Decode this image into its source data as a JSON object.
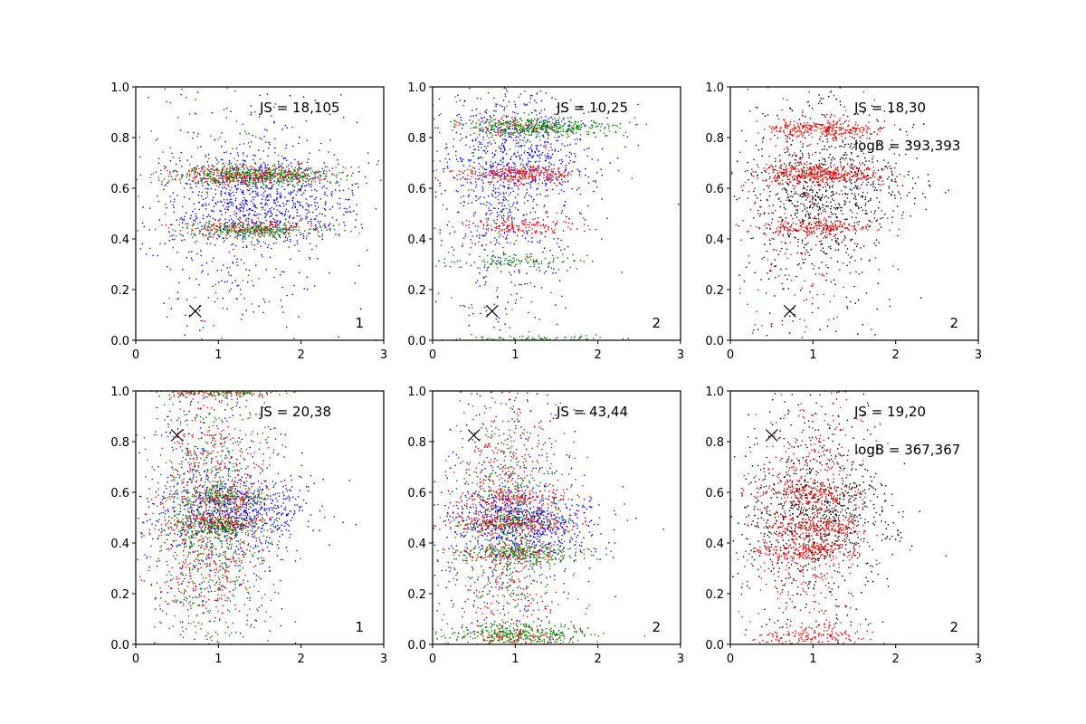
{
  "colors": {
    "blue": "#0000ff",
    "red": "#ff0000",
    "green": "#008000",
    "black": "#000000"
  },
  "chart_data": [
    {
      "type": "scatter",
      "id": "top-left",
      "xlim": [
        0,
        3
      ],
      "ylim": [
        0,
        1
      ],
      "x_ticks": [
        "0",
        "1",
        "2",
        "3"
      ],
      "y_ticks": [
        "0.0",
        "0.2",
        "0.4",
        "0.6",
        "0.8",
        "1.0"
      ],
      "annotations": [
        "JS = 18,105"
      ],
      "panel_label": "1",
      "marker": {
        "x": 0.72,
        "y": 0.115
      },
      "series": [
        {
          "name": "blue",
          "color": "#0000ff",
          "count": 1100,
          "seed": 11,
          "clusters": [
            {
              "x": 1.5,
              "y": 0.56,
              "sx": 0.55,
              "sy": 0.09,
              "w": 0.6
            },
            {
              "x": 1.3,
              "y": 0.5,
              "sx": 0.7,
              "sy": 0.25,
              "w": 0.4
            }
          ]
        },
        {
          "name": "red",
          "color": "#ff0000",
          "count": 650,
          "seed": 12,
          "clusters": [
            {
              "x": 1.4,
              "y": 0.65,
              "sx": 0.45,
              "sy": 0.02,
              "w": 0.55
            },
            {
              "x": 1.4,
              "y": 0.44,
              "sx": 0.45,
              "sy": 0.015,
              "w": 0.3
            },
            {
              "x": 1.0,
              "y": 0.55,
              "sx": 0.5,
              "sy": 0.3,
              "w": 0.15
            }
          ]
        },
        {
          "name": "green",
          "color": "#008000",
          "count": 750,
          "seed": 13,
          "clusters": [
            {
              "x": 1.5,
              "y": 0.65,
              "sx": 0.5,
              "sy": 0.02,
              "w": 0.55
            },
            {
              "x": 1.4,
              "y": 0.435,
              "sx": 0.45,
              "sy": 0.015,
              "w": 0.35
            },
            {
              "x": 1.0,
              "y": 0.55,
              "sx": 0.5,
              "sy": 0.3,
              "w": 0.1
            }
          ]
        }
      ]
    },
    {
      "type": "scatter",
      "id": "top-middle",
      "xlim": [
        0,
        3
      ],
      "ylim": [
        0,
        1
      ],
      "x_ticks": [
        "0",
        "1",
        "2",
        "3"
      ],
      "y_ticks": [
        "0.0",
        "0.2",
        "0.4",
        "0.6",
        "0.8",
        "1.0"
      ],
      "annotations": [
        "JS = 10,25"
      ],
      "panel_label": "2",
      "marker": {
        "x": 0.72,
        "y": 0.115
      },
      "series": [
        {
          "name": "blue",
          "color": "#0000ff",
          "count": 1000,
          "seed": 21,
          "clusters": [
            {
              "x": 1.1,
              "y": 0.72,
              "sx": 0.45,
              "sy": 0.13,
              "w": 0.6
            },
            {
              "x": 0.9,
              "y": 0.5,
              "sx": 0.45,
              "sy": 0.3,
              "w": 0.4
            }
          ]
        },
        {
          "name": "red",
          "color": "#ff0000",
          "count": 600,
          "seed": 22,
          "clusters": [
            {
              "x": 1.1,
              "y": 0.655,
              "sx": 0.35,
              "sy": 0.018,
              "w": 0.45
            },
            {
              "x": 1.0,
              "y": 0.45,
              "sx": 0.35,
              "sy": 0.015,
              "w": 0.25
            },
            {
              "x": 1.0,
              "y": 0.84,
              "sx": 0.35,
              "sy": 0.02,
              "w": 0.15
            },
            {
              "x": 0.9,
              "y": 0.6,
              "sx": 0.4,
              "sy": 0.3,
              "w": 0.15
            }
          ]
        },
        {
          "name": "green",
          "color": "#008000",
          "count": 700,
          "seed": 23,
          "clusters": [
            {
              "x": 1.3,
              "y": 0.84,
              "sx": 0.45,
              "sy": 0.018,
              "w": 0.55
            },
            {
              "x": 0.9,
              "y": 0.31,
              "sx": 0.4,
              "sy": 0.015,
              "w": 0.15
            },
            {
              "x": 1.1,
              "y": 0.005,
              "sx": 0.5,
              "sy": 0.006,
              "w": 0.15
            },
            {
              "x": 0.8,
              "y": 0.6,
              "sx": 0.35,
              "sy": 0.3,
              "w": 0.15
            }
          ]
        }
      ]
    },
    {
      "type": "scatter",
      "id": "top-right",
      "xlim": [
        0,
        3
      ],
      "ylim": [
        0,
        1
      ],
      "x_ticks": [
        "0",
        "1",
        "2",
        "3"
      ],
      "y_ticks": [
        "0.0",
        "0.2",
        "0.4",
        "0.6",
        "0.8",
        "1.0"
      ],
      "annotations": [
        "JS = 18,30",
        "logB = 393,393"
      ],
      "panel_label": "2",
      "marker": {
        "x": 0.72,
        "y": 0.115
      },
      "series": [
        {
          "name": "black",
          "color": "#000000",
          "count": 1000,
          "seed": 31,
          "clusters": [
            {
              "x": 1.2,
              "y": 0.6,
              "sx": 0.5,
              "sy": 0.12,
              "w": 0.6
            },
            {
              "x": 1.0,
              "y": 0.5,
              "sx": 0.5,
              "sy": 0.3,
              "w": 0.4
            }
          ]
        },
        {
          "name": "red",
          "color": "#ff0000",
          "count": 1100,
          "seed": 32,
          "clusters": [
            {
              "x": 1.1,
              "y": 0.835,
              "sx": 0.35,
              "sy": 0.018,
              "w": 0.25
            },
            {
              "x": 1.1,
              "y": 0.655,
              "sx": 0.38,
              "sy": 0.02,
              "w": 0.35
            },
            {
              "x": 1.0,
              "y": 0.445,
              "sx": 0.35,
              "sy": 0.015,
              "w": 0.15
            },
            {
              "x": 0.9,
              "y": 0.5,
              "sx": 0.4,
              "sy": 0.3,
              "w": 0.25
            }
          ]
        }
      ]
    },
    {
      "type": "scatter",
      "id": "bottom-left",
      "xlim": [
        0,
        3
      ],
      "ylim": [
        0,
        1
      ],
      "x_ticks": [
        "0",
        "1",
        "2",
        "3"
      ],
      "y_ticks": [
        "0.0",
        "0.2",
        "0.4",
        "0.6",
        "0.8",
        "1.0"
      ],
      "annotations": [
        "JS = 20,38"
      ],
      "panel_label": "1",
      "marker": {
        "x": 0.5,
        "y": 0.825
      },
      "series": [
        {
          "name": "blue",
          "color": "#0000ff",
          "count": 1000,
          "seed": 41,
          "clusters": [
            {
              "x": 1.2,
              "y": 0.53,
              "sx": 0.5,
              "sy": 0.08,
              "w": 0.6
            },
            {
              "x": 0.9,
              "y": 0.5,
              "sx": 0.45,
              "sy": 0.3,
              "w": 0.4
            }
          ]
        },
        {
          "name": "red",
          "color": "#ff0000",
          "count": 1100,
          "seed": 42,
          "clusters": [
            {
              "x": 0.9,
              "y": 0.5,
              "sx": 0.35,
              "sy": 0.28,
              "w": 0.65
            },
            {
              "x": 1.0,
              "y": 0.995,
              "sx": 0.4,
              "sy": 0.01,
              "w": 0.1
            },
            {
              "x": 1.0,
              "y": 0.585,
              "sx": 0.3,
              "sy": 0.02,
              "w": 0.1
            },
            {
              "x": 1.0,
              "y": 0.48,
              "sx": 0.3,
              "sy": 0.02,
              "w": 0.15
            }
          ]
        },
        {
          "name": "green",
          "color": "#008000",
          "count": 1100,
          "seed": 43,
          "clusters": [
            {
              "x": 0.9,
              "y": 0.5,
              "sx": 0.35,
              "sy": 0.28,
              "w": 0.65
            },
            {
              "x": 1.0,
              "y": 0.995,
              "sx": 0.4,
              "sy": 0.01,
              "w": 0.1
            },
            {
              "x": 1.0,
              "y": 0.585,
              "sx": 0.3,
              "sy": 0.02,
              "w": 0.1
            },
            {
              "x": 1.0,
              "y": 0.47,
              "sx": 0.3,
              "sy": 0.02,
              "w": 0.15
            }
          ]
        }
      ]
    },
    {
      "type": "scatter",
      "id": "bottom-middle",
      "xlim": [
        0,
        3
      ],
      "ylim": [
        0,
        1
      ],
      "x_ticks": [
        "0",
        "1",
        "2",
        "3"
      ],
      "y_ticks": [
        "0.0",
        "0.2",
        "0.4",
        "0.6",
        "0.8",
        "1.0"
      ],
      "annotations": [
        "JS = 43,44"
      ],
      "panel_label": "2",
      "marker": {
        "x": 0.5,
        "y": 0.825
      },
      "series": [
        {
          "name": "blue",
          "color": "#0000ff",
          "count": 1000,
          "seed": 51,
          "clusters": [
            {
              "x": 1.1,
              "y": 0.47,
              "sx": 0.45,
              "sy": 0.07,
              "w": 0.6
            },
            {
              "x": 0.9,
              "y": 0.4,
              "sx": 0.45,
              "sy": 0.3,
              "w": 0.4
            }
          ]
        },
        {
          "name": "red",
          "color": "#ff0000",
          "count": 1100,
          "seed": 52,
          "clusters": [
            {
              "x": 0.9,
              "y": 0.5,
              "sx": 0.35,
              "sy": 0.28,
              "w": 0.5
            },
            {
              "x": 1.0,
              "y": 0.48,
              "sx": 0.35,
              "sy": 0.02,
              "w": 0.2
            },
            {
              "x": 1.0,
              "y": 0.58,
              "sx": 0.3,
              "sy": 0.02,
              "w": 0.1
            },
            {
              "x": 1.0,
              "y": 0.36,
              "sx": 0.35,
              "sy": 0.02,
              "w": 0.1
            },
            {
              "x": 1.0,
              "y": 0.03,
              "sx": 0.35,
              "sy": 0.02,
              "w": 0.1
            }
          ]
        },
        {
          "name": "green",
          "color": "#008000",
          "count": 1100,
          "seed": 53,
          "clusters": [
            {
              "x": 0.9,
              "y": 0.5,
              "sx": 0.35,
              "sy": 0.28,
              "w": 0.45
            },
            {
              "x": 1.1,
              "y": 0.36,
              "sx": 0.4,
              "sy": 0.02,
              "w": 0.2
            },
            {
              "x": 1.1,
              "y": 0.04,
              "sx": 0.45,
              "sy": 0.02,
              "w": 0.25
            },
            {
              "x": 1.0,
              "y": 0.48,
              "sx": 0.3,
              "sy": 0.02,
              "w": 0.1
            }
          ]
        }
      ]
    },
    {
      "type": "scatter",
      "id": "bottom-right",
      "xlim": [
        0,
        3
      ],
      "ylim": [
        0,
        1
      ],
      "x_ticks": [
        "0",
        "1",
        "2",
        "3"
      ],
      "y_ticks": [
        "0.0",
        "0.2",
        "0.4",
        "0.6",
        "0.8",
        "1.0"
      ],
      "annotations": [
        "JS = 19,20",
        "logB = 367,367"
      ],
      "panel_label": "2",
      "marker": {
        "x": 0.5,
        "y": 0.825
      },
      "series": [
        {
          "name": "black",
          "color": "#000000",
          "count": 1000,
          "seed": 61,
          "clusters": [
            {
              "x": 1.1,
              "y": 0.5,
              "sx": 0.45,
              "sy": 0.12,
              "w": 0.6
            },
            {
              "x": 0.9,
              "y": 0.5,
              "sx": 0.45,
              "sy": 0.3,
              "w": 0.4
            }
          ]
        },
        {
          "name": "red",
          "color": "#ff0000",
          "count": 1200,
          "seed": 62,
          "clusters": [
            {
              "x": 0.9,
              "y": 0.5,
              "sx": 0.35,
              "sy": 0.28,
              "w": 0.45
            },
            {
              "x": 1.0,
              "y": 0.46,
              "sx": 0.33,
              "sy": 0.02,
              "w": 0.15
            },
            {
              "x": 1.0,
              "y": 0.37,
              "sx": 0.33,
              "sy": 0.02,
              "w": 0.15
            },
            {
              "x": 1.0,
              "y": 0.6,
              "sx": 0.3,
              "sy": 0.02,
              "w": 0.1
            },
            {
              "x": 1.0,
              "y": 0.03,
              "sx": 0.35,
              "sy": 0.02,
              "w": 0.15
            }
          ]
        }
      ]
    }
  ]
}
